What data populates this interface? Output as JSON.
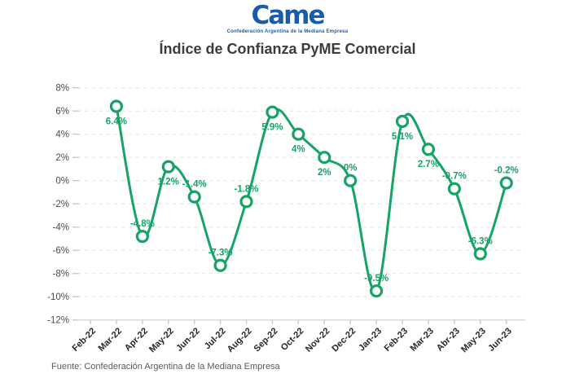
{
  "logo": {
    "text": "Came",
    "tagline": "Confederación Argentina de la Mediana Empresa"
  },
  "title": "Índice de Confianza PyME Comercial",
  "source": "Fuente: Confederación Argentina de la Mediana Empresa",
  "chart_data": {
    "type": "line",
    "title": "Índice de Confianza PyME Comercial",
    "categories": [
      "Feb-22",
      "Mar-22",
      "Apr-22",
      "May-22",
      "Jun-22",
      "Jul-22",
      "Aug-22",
      "Sep-22",
      "Oct-22",
      "Nov-22",
      "Dec-22",
      "Jan-23",
      "Feb-23",
      "Mar-23",
      "Abr-23",
      "May-23",
      "Jun-23"
    ],
    "values": [
      null,
      6.4,
      -4.8,
      1.2,
      -1.4,
      -7.3,
      -1.8,
      5.9,
      4,
      2,
      0,
      -9.5,
      5.1,
      2.7,
      -0.7,
      -6.3,
      -0.2
    ],
    "point_labels": [
      null,
      "6.4%",
      "-4.8%",
      "1.2%",
      "-1.4%",
      "-7.3%",
      "-1.8%",
      "5.9%",
      "4%",
      "2%",
      "0%",
      "-9.5%",
      "5.1%",
      "2.7%",
      "-0.7%",
      "-6.3%",
      "-0.2%"
    ],
    "label_placement": [
      null,
      "below",
      "above",
      "below",
      "above",
      "above",
      "above",
      "below",
      "below",
      "below",
      "above",
      "above",
      "below",
      "below",
      "above",
      "above",
      "above"
    ],
    "xlabel": "",
    "ylabel": "",
    "ylim": [
      -12,
      8
    ],
    "ytick_step": 2,
    "ytick_suffix": "%",
    "grid": "horizontal-dashed",
    "legend": "none",
    "line_color": "#17A367",
    "marker": "open-circle",
    "marker_fill": "#ffffff",
    "grid_color": "#e4e4e4",
    "axis_color": "#d8d8d8",
    "tick_color": "#c9c9c9",
    "ylabel_color": "#4a4a4a",
    "xlabel_color": "#262626"
  }
}
